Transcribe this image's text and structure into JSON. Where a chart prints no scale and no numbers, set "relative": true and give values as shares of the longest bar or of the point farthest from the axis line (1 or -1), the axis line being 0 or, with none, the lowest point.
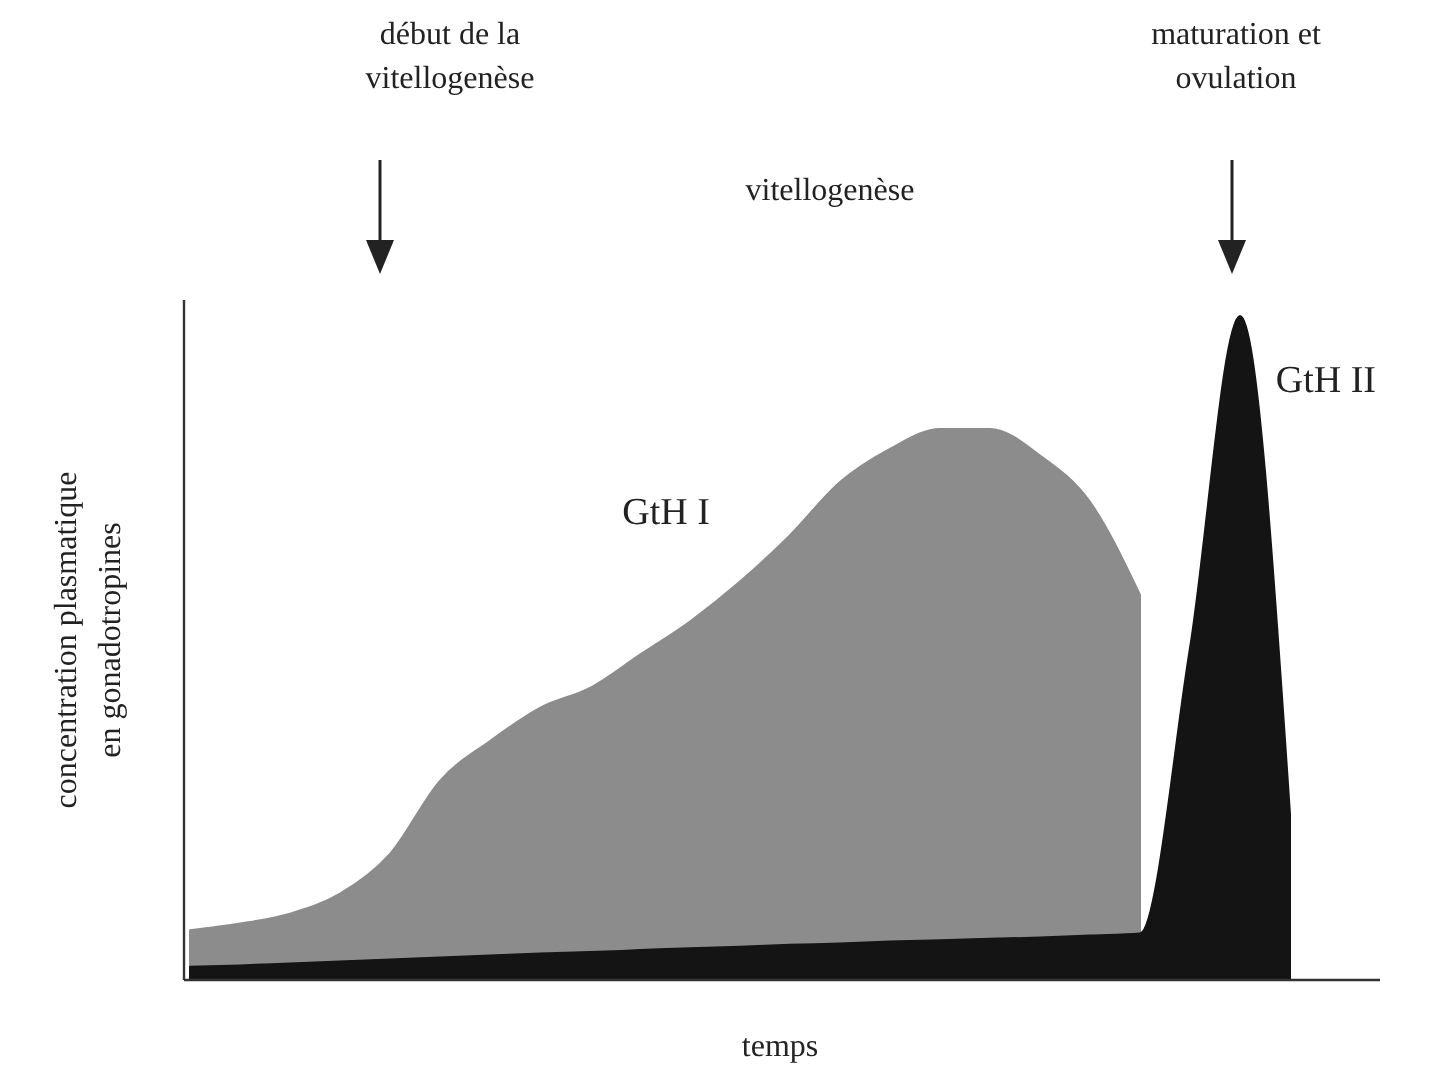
{
  "chart_data": {
    "type": "area",
    "relative": true,
    "xlabel": "temps",
    "ylabel": "concentration plasmatique\nen gonadotropines",
    "legend": false,
    "categories": [
      null,
      null,
      null,
      null,
      null,
      null,
      null,
      null,
      null,
      null,
      null,
      null,
      null,
      null,
      null,
      null,
      null,
      null,
      null,
      null,
      null,
      null,
      null,
      null
    ],
    "series": [
      {
        "name": "GtH I",
        "color": "#8c8c8c",
        "values": [
          0.075,
          0.085,
          0.1,
          0.13,
          0.19,
          0.3,
          0.36,
          0.41,
          0.44,
          0.49,
          0.54,
          0.6,
          0.67,
          0.75,
          0.8,
          0.83,
          0.83,
          0.79,
          0.72,
          0.58,
          null,
          null,
          null,
          null
        ]
      },
      {
        "name": "GtH II",
        "color": "#141414",
        "values": [
          0.02,
          0.022,
          0.025,
          0.028,
          0.031,
          0.034,
          0.037,
          0.04,
          0.042,
          0.045,
          0.048,
          0.05,
          0.053,
          0.055,
          0.058,
          0.06,
          0.062,
          0.064,
          0.067,
          0.07,
          0.5,
          1.0,
          0.25,
          null
        ]
      }
    ],
    "annotations": [
      "début de la\nvitellogenèse",
      "vitellogenèse",
      "maturation et\novulation"
    ]
  }
}
